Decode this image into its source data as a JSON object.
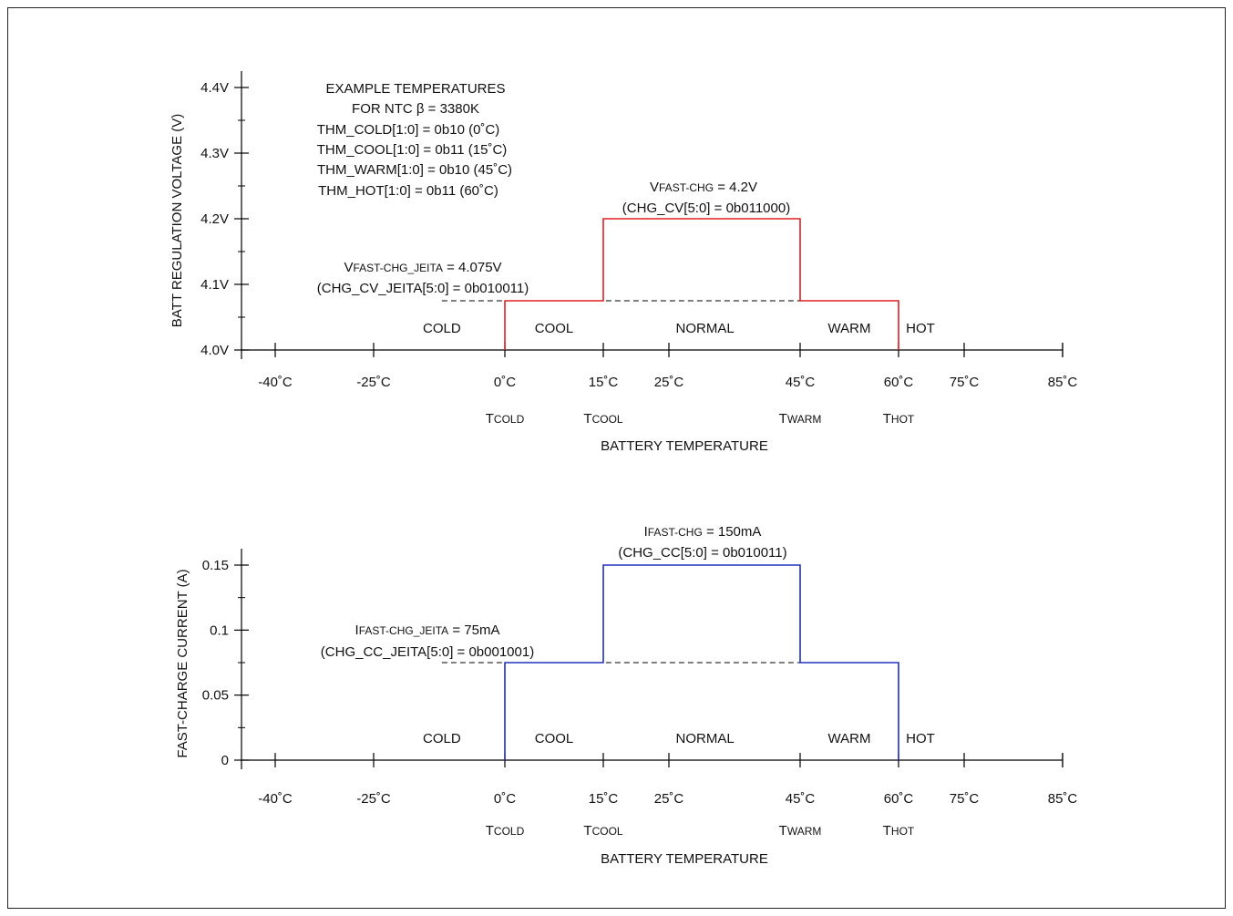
{
  "colors": {
    "voltage_line": "#e02020",
    "current_line": "#2030c0",
    "axis": "#000000",
    "dashed": "#000000"
  },
  "regions": [
    "COLD",
    "COOL",
    "NORMAL",
    "WARM",
    "HOT"
  ],
  "chart_data": [
    {
      "type": "line",
      "title": "",
      "ylabel": "BATT REGULATION VOLTAGE (V)",
      "xlabel": "BATTERY TEMPERATURE",
      "ylim": [
        4.0,
        4.4
      ],
      "yticks": [
        {
          "value": 4.0,
          "label": "4.0V"
        },
        {
          "value": 4.1,
          "label": "4.1V"
        },
        {
          "value": 4.2,
          "label": "4.2V"
        },
        {
          "value": 4.3,
          "label": "4.3V"
        },
        {
          "value": 4.4,
          "label": "4.4V"
        }
      ],
      "xticks": [
        {
          "value": -40,
          "label": "-40˚C"
        },
        {
          "value": -25,
          "label": "-25˚C"
        },
        {
          "value": 0,
          "label": "0˚C"
        },
        {
          "value": 15,
          "label": "15˚C"
        },
        {
          "value": 25,
          "label": "25˚C"
        },
        {
          "value": 45,
          "label": "45˚C"
        },
        {
          "value": 60,
          "label": "60˚C"
        },
        {
          "value": 75,
          "label": "75˚C"
        },
        {
          "value": 85,
          "label": "85˚C"
        }
      ],
      "thresholds": [
        {
          "value": 0,
          "main": "T",
          "sub": "COLD"
        },
        {
          "value": 15,
          "main": "T",
          "sub": "COOL"
        },
        {
          "value": 45,
          "main": "T",
          "sub": "WARM"
        },
        {
          "value": 60,
          "main": "T",
          "sub": "HOT"
        }
      ],
      "series": [
        {
          "x": [
            0,
            0,
            15,
            15,
            45,
            45,
            60,
            60
          ],
          "y": [
            4.0,
            4.075,
            4.075,
            4.2,
            4.2,
            4.075,
            4.075,
            4.0
          ]
        }
      ],
      "reference_level": {
        "y": 4.075,
        "x_from": -12,
        "x_to": 60
      },
      "annotations": {
        "example_title_1": "EXAMPLE TEMPERATURES",
        "example_title_2": "FOR NTC β = 3380K",
        "example_lines": [
          "THM_COLD[1:0] = 0b10 (0˚C)",
          "THM_COOL[1:0] = 0b11 (15˚C)",
          "THM_WARM[1:0] = 0b10 (45˚C)",
          "THM_HOT[1:0] = 0b11 (60˚C)"
        ],
        "fast_main": "V",
        "fast_sub": "FAST-CHG",
        "fast_value": " = 4.2V",
        "fast_reg": "(CHG_CV[5:0] = 0b011000)",
        "jeita_main": "V",
        "jeita_sub": "FAST-CHG_JEITA",
        "jeita_value": "  = 4.075V",
        "jeita_reg": "(CHG_CV_JEITA[5:0] = 0b010011)"
      }
    },
    {
      "type": "line",
      "title": "",
      "ylabel": "FAST-CHARGE CURRENT (A)",
      "xlabel": "BATTERY TEMPERATURE",
      "ylim": [
        0,
        0.15
      ],
      "yticks": [
        {
          "value": 0,
          "label": "0"
        },
        {
          "value": 0.05,
          "label": "0.05"
        },
        {
          "value": 0.1,
          "label": "0.1"
        },
        {
          "value": 0.15,
          "label": "0.15"
        }
      ],
      "xticks": [
        {
          "value": -40,
          "label": "-40˚C"
        },
        {
          "value": -25,
          "label": "-25˚C"
        },
        {
          "value": 0,
          "label": "0˚C"
        },
        {
          "value": 15,
          "label": "15˚C"
        },
        {
          "value": 25,
          "label": "25˚C"
        },
        {
          "value": 45,
          "label": "45˚C"
        },
        {
          "value": 60,
          "label": "60˚C"
        },
        {
          "value": 75,
          "label": "75˚C"
        },
        {
          "value": 85,
          "label": "85˚C"
        }
      ],
      "thresholds": [
        {
          "value": 0,
          "main": "T",
          "sub": "COLD"
        },
        {
          "value": 15,
          "main": "T",
          "sub": "COOL"
        },
        {
          "value": 45,
          "main": "T",
          "sub": "WARM"
        },
        {
          "value": 60,
          "main": "T",
          "sub": "HOT"
        }
      ],
      "series": [
        {
          "x": [
            0,
            0,
            15,
            15,
            45,
            45,
            60,
            60
          ],
          "y": [
            0,
            0.075,
            0.075,
            0.15,
            0.15,
            0.075,
            0.075,
            0
          ]
        }
      ],
      "reference_level": {
        "y": 0.075,
        "x_from": -12,
        "x_to": 60
      },
      "annotations": {
        "fast_main": "I",
        "fast_sub": "FAST-CHG",
        "fast_value": " = 150mA",
        "fast_reg": "(CHG_CC[5:0] = 0b010011)",
        "jeita_main": "I",
        "jeita_sub": "FAST-CHG_JEITA",
        "jeita_value": " = 75mA",
        "jeita_reg": "(CHG_CC_JEITA[5:0] = 0b001001)"
      }
    }
  ]
}
